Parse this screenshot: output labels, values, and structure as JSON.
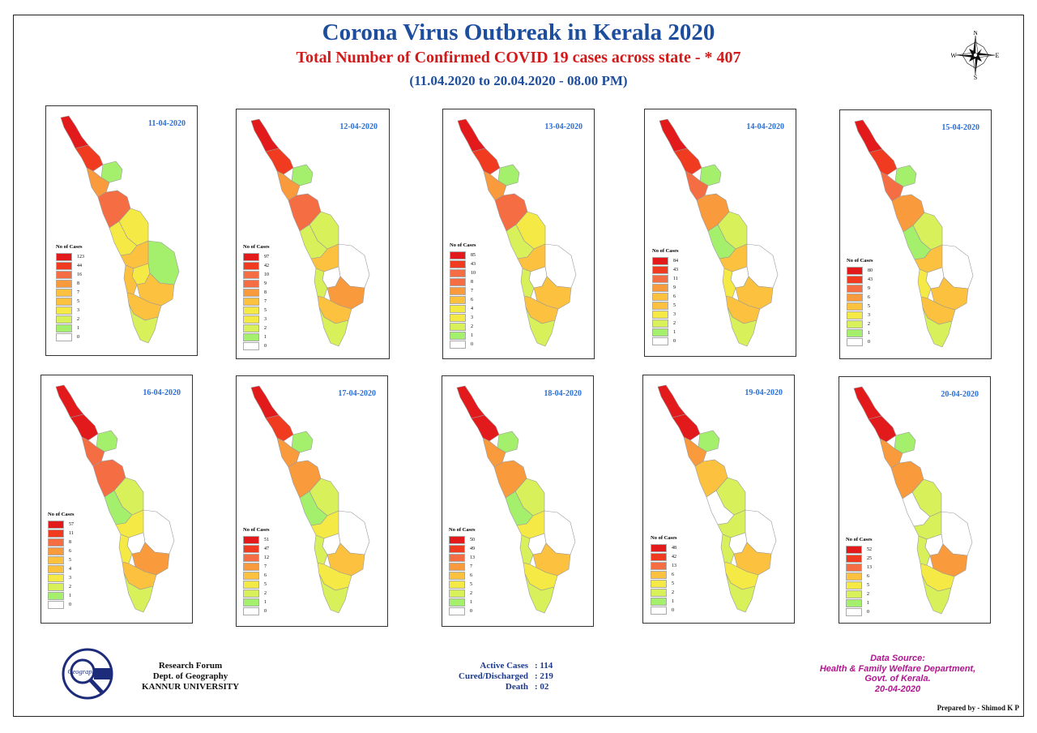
{
  "header": {
    "title": "Corona Virus Outbreak in Kerala 2020",
    "subtitle": "Total Number of Confirmed COVID 19 cases across state - * 407",
    "date_range": "(11.04.2020 to 20.04.2020 - 08.00 PM)"
  },
  "compass": {
    "n": "N",
    "s": "S",
    "e": "E",
    "w": "W"
  },
  "colors": {
    "c1": "#e31a1c",
    "c2": "#f03b20",
    "c3": "#f46d43",
    "c4": "#f99a3d",
    "c5": "#fbc13f",
    "c6": "#f5ea45",
    "c7": "#d8f05a",
    "c8": "#a4ef6c",
    "c9": "#ffffff"
  },
  "legend_title": "No of Cases",
  "panels": [
    {
      "date": "11-04-2020",
      "legend": [
        "123",
        "44",
        "16",
        "8",
        "7",
        "5",
        "3",
        "2",
        "1",
        "0"
      ],
      "fills": [
        "c1",
        "c2",
        "c8",
        "c4",
        "c3",
        "c6",
        "c6",
        "c5",
        "c8",
        "c6",
        "c5",
        "c5",
        "c5",
        "c7"
      ]
    },
    {
      "date": "12-04-2020",
      "legend": [
        "97",
        "42",
        "10",
        "9",
        "8",
        "7",
        "5",
        "3",
        "2",
        "1",
        "0"
      ],
      "fills": [
        "c1",
        "c2",
        "c8",
        "c4",
        "c3",
        "c7",
        "c7",
        "c5",
        "c9",
        "c9",
        "c7",
        "c4",
        "c5",
        "c7"
      ]
    },
    {
      "date": "13-04-2020",
      "legend": [
        "85",
        "43",
        "10",
        "8",
        "7",
        "6",
        "4",
        "3",
        "2",
        "1",
        "0"
      ],
      "fills": [
        "c1",
        "c2",
        "c8",
        "c4",
        "c3",
        "c6",
        "c7",
        "c5",
        "c9",
        "c9",
        "c7",
        "c5",
        "c5",
        "c7"
      ]
    },
    {
      "date": "14-04-2020",
      "legend": [
        "84",
        "43",
        "11",
        "9",
        "6",
        "5",
        "3",
        "2",
        "1",
        "0"
      ],
      "fills": [
        "c1",
        "c2",
        "c8",
        "c3",
        "c4",
        "c7",
        "c8",
        "c5",
        "c9",
        "c9",
        "c6",
        "c5",
        "c5",
        "c7"
      ]
    },
    {
      "date": "15-04-2020",
      "legend": [
        "80",
        "43",
        "9",
        "6",
        "5",
        "3",
        "2",
        "1",
        "0"
      ],
      "fills": [
        "c1",
        "c2",
        "c8",
        "c3",
        "c4",
        "c7",
        "c8",
        "c5",
        "c9",
        "c9",
        "c6",
        "c5",
        "c5",
        "c7"
      ]
    },
    {
      "date": "16-04-2020",
      "legend": [
        "57",
        "11",
        "8",
        "6",
        "5",
        "4",
        "3",
        "2",
        "1",
        "0"
      ],
      "fills": [
        "c1",
        "c1",
        "c8",
        "c3",
        "c3",
        "c7",
        "c8",
        "c6",
        "c9",
        "c9",
        "c6",
        "c4",
        "c5",
        "c7"
      ]
    },
    {
      "date": "17-04-2020",
      "legend": [
        "51",
        "47",
        "12",
        "7",
        "6",
        "5",
        "2",
        "1",
        "0"
      ],
      "fills": [
        "c1",
        "c2",
        "c8",
        "c4",
        "c4",
        "c7",
        "c8",
        "c6",
        "c9",
        "c9",
        "c7",
        "c5",
        "c6",
        "c7"
      ]
    },
    {
      "date": "18-04-2020",
      "legend": [
        "50",
        "49",
        "13",
        "7",
        "6",
        "5",
        "2",
        "1",
        "0"
      ],
      "fills": [
        "c1",
        "c1",
        "c8",
        "c4",
        "c4",
        "c7",
        "c8",
        "c6",
        "c9",
        "c9",
        "c7",
        "c5",
        "c6",
        "c7"
      ]
    },
    {
      "date": "19-04-2020",
      "legend": [
        "48",
        "42",
        "13",
        "6",
        "5",
        "2",
        "1",
        "0"
      ],
      "fills": [
        "c1",
        "c1",
        "c8",
        "c4",
        "c5",
        "c7",
        "c9",
        "c7",
        "c9",
        "c9",
        "c7",
        "c5",
        "c6",
        "c7"
      ]
    },
    {
      "date": "20-04-2020",
      "legend": [
        "52",
        "25",
        "13",
        "6",
        "5",
        "2",
        "1",
        "0"
      ],
      "fills": [
        "c1",
        "c1",
        "c8",
        "c4",
        "c4",
        "c7",
        "c9",
        "c7",
        "c9",
        "c9",
        "c7",
        "c4",
        "c6",
        "c7"
      ]
    }
  ],
  "footer": {
    "logo_text": "Geographical",
    "org_line1": "Research Forum",
    "org_line2": "Dept. of Geography",
    "org_line3": "KANNUR UNIVERSITY",
    "stats": [
      {
        "label": "Active Cases",
        "value": ": 114"
      },
      {
        "label": "Cured/Discharged",
        "value": ": 219"
      },
      {
        "label": "Death",
        "value": ": 02"
      }
    ],
    "source_line1": "Data Source:",
    "source_line2": "Health & Family Welfare Department,",
    "source_line3": "Govt. of Kerala.",
    "source_line4": "20-04-2020",
    "prepared_by": "Prepared by - Shimod K P"
  }
}
